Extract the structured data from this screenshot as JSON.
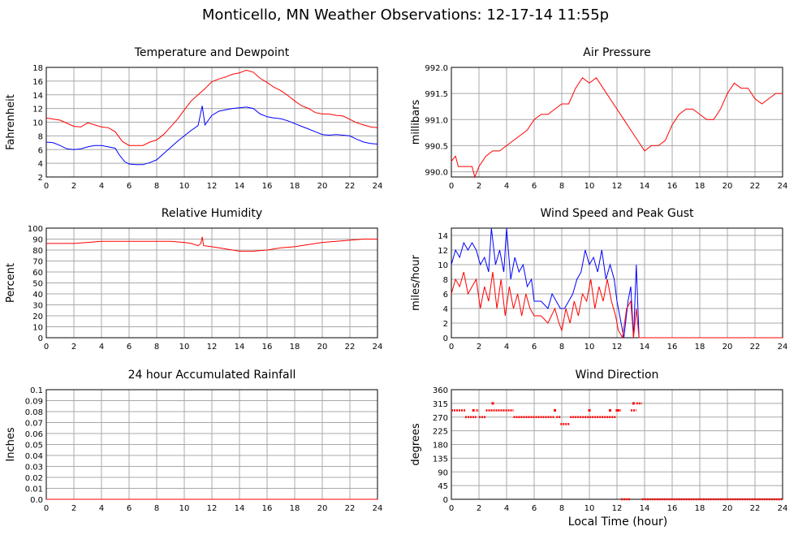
{
  "title": "Monticello, MN Weather Observations: 12-17-14 11:55p",
  "xlabel": "Local Time (hour)",
  "colors": {
    "red": "#ff0000",
    "blue": "#0000ff",
    "grid": "#a8a8a8"
  },
  "chart_data": [
    {
      "id": "temp",
      "type": "line",
      "title": "Temperature and Dewpoint",
      "ylabel": "Fahrenheit",
      "xlim": [
        0,
        24
      ],
      "ylim": [
        2,
        18
      ],
      "xticks": [
        "0",
        "2",
        "4",
        "6",
        "8",
        "10",
        "12",
        "14",
        "16",
        "18",
        "20",
        "22",
        "24"
      ],
      "yticks": [
        "2",
        "4",
        "6",
        "8",
        "10",
        "12",
        "14",
        "16",
        "18"
      ],
      "grid": true,
      "series": [
        {
          "color": "#ff0000",
          "x": [
            0,
            1,
            2,
            2.5,
            3,
            4,
            4.5,
            5,
            5.5,
            6,
            6.5,
            7,
            7.5,
            8,
            8.5,
            9,
            9.5,
            10,
            10.5,
            11,
            11.5,
            12,
            12.5,
            13,
            13.5,
            14,
            14.5,
            15,
            15.5,
            16,
            16.5,
            17,
            17.5,
            18,
            18.5,
            19,
            19.5,
            20,
            20.5,
            21,
            21.5,
            22,
            22.5,
            23,
            23.5,
            24
          ],
          "y": [
            10.6,
            10.3,
            9.4,
            9.3,
            9.9,
            9.3,
            9.2,
            8.6,
            7.2,
            6.6,
            6.6,
            6.6,
            7.1,
            7.4,
            8.2,
            9.3,
            10.4,
            11.8,
            13.1,
            14.0,
            14.9,
            15.9,
            16.3,
            16.6,
            17.0,
            17.2,
            17.6,
            17.3,
            16.4,
            15.8,
            15.1,
            14.6,
            13.9,
            13.1,
            12.4,
            12.0,
            11.4,
            11.2,
            11.2,
            11.0,
            10.9,
            10.4,
            9.9,
            9.6,
            9.3,
            9.2
          ]
        },
        {
          "color": "#0000ff",
          "x": [
            0,
            0.5,
            1,
            1.5,
            2,
            2.5,
            3,
            3.5,
            4,
            4.5,
            5,
            5.3,
            5.7,
            6,
            6.5,
            7,
            7.5,
            8,
            8.5,
            9,
            9.5,
            10,
            10.5,
            11,
            11.3,
            11.5,
            12,
            12.5,
            13,
            13.5,
            14,
            14.5,
            15,
            15.5,
            16,
            16.5,
            17,
            17.5,
            18,
            18.5,
            19,
            19.5,
            20,
            20.5,
            21,
            21.5,
            22,
            22.5,
            23,
            23.5,
            24
          ],
          "y": [
            7.1,
            7.0,
            6.6,
            6.1,
            6.0,
            6.1,
            6.4,
            6.6,
            6.6,
            6.4,
            6.2,
            5.2,
            4.2,
            3.9,
            3.8,
            3.8,
            4.1,
            4.5,
            5.4,
            6.3,
            7.2,
            8.0,
            8.8,
            9.5,
            12.4,
            9.6,
            11.0,
            11.6,
            11.8,
            12.0,
            12.1,
            12.2,
            12.0,
            11.2,
            10.8,
            10.6,
            10.5,
            10.2,
            9.8,
            9.4,
            9.0,
            8.6,
            8.2,
            8.1,
            8.2,
            8.1,
            8.0,
            7.5,
            7.1,
            6.9,
            6.8
          ]
        }
      ]
    },
    {
      "id": "pressure",
      "type": "line",
      "title": "Air Pressure",
      "ylabel": "millibars",
      "xlim": [
        0,
        24
      ],
      "ylim": [
        989.9,
        992.0
      ],
      "xticks": [
        "0",
        "2",
        "4",
        "6",
        "8",
        "10",
        "12",
        "14",
        "16",
        "18",
        "20",
        "22",
        "24"
      ],
      "yticks": [
        "990.0",
        "990.5",
        "991.0",
        "991.5",
        "992.0"
      ],
      "ytick_values": [
        990.0,
        990.5,
        991.0,
        991.5,
        992.0
      ],
      "grid": true,
      "series": [
        {
          "color": "#ff0000",
          "x": [
            0,
            0.3,
            0.5,
            1,
            1.5,
            1.7,
            2,
            2.5,
            3,
            3.5,
            4,
            4.5,
            5,
            5.5,
            6,
            6.5,
            7,
            7.5,
            8,
            8.5,
            9,
            9.5,
            10,
            10.5,
            11,
            11.5,
            12,
            12.5,
            13,
            13.5,
            14,
            14.5,
            15,
            15.5,
            16,
            16.5,
            17,
            17.5,
            18,
            18.5,
            19,
            19.5,
            20,
            20.5,
            21,
            21.5,
            22,
            22.5,
            23,
            23.5,
            24
          ],
          "y": [
            990.2,
            990.3,
            990.1,
            990.1,
            990.1,
            989.9,
            990.1,
            990.3,
            990.4,
            990.4,
            990.5,
            990.6,
            990.7,
            990.8,
            991.0,
            991.1,
            991.1,
            991.2,
            991.3,
            991.3,
            991.6,
            991.8,
            991.7,
            991.8,
            991.6,
            991.4,
            991.2,
            991.0,
            990.8,
            990.6,
            990.4,
            990.5,
            990.5,
            990.6,
            990.9,
            991.1,
            991.2,
            991.2,
            991.1,
            991.0,
            991.0,
            991.2,
            991.5,
            991.7,
            991.6,
            991.6,
            991.4,
            991.3,
            991.4,
            991.5,
            991.5
          ]
        }
      ]
    },
    {
      "id": "humidity",
      "type": "line",
      "title": "Relative Humidity",
      "ylabel": "Percent",
      "xlim": [
        0,
        24
      ],
      "ylim": [
        0,
        100
      ],
      "xticks": [
        "0",
        "2",
        "4",
        "6",
        "8",
        "10",
        "12",
        "14",
        "16",
        "18",
        "20",
        "22",
        "24"
      ],
      "yticks": [
        "0",
        "10",
        "20",
        "30",
        "40",
        "50",
        "60",
        "70",
        "80",
        "90",
        "100"
      ],
      "grid": true,
      "series": [
        {
          "color": "#ff0000",
          "x": [
            0,
            2,
            3,
            4,
            6,
            8,
            9,
            10,
            10.5,
            11,
            11.2,
            11.3,
            11.4,
            12,
            13,
            14,
            15,
            16,
            17,
            18,
            19,
            20,
            21,
            22,
            23,
            24
          ],
          "y": [
            86,
            86,
            87,
            88,
            88,
            88,
            88,
            87,
            86,
            84,
            86,
            92,
            84,
            83,
            81,
            79,
            79,
            80,
            82,
            83,
            85,
            87,
            88,
            89,
            90,
            90
          ]
        }
      ]
    },
    {
      "id": "wind",
      "type": "line",
      "title": "Wind Speed and Peak Gust",
      "ylabel": "miles/hour",
      "xlim": [
        0,
        24
      ],
      "ylim": [
        0,
        15
      ],
      "xticks": [
        "0",
        "2",
        "4",
        "6",
        "8",
        "10",
        "12",
        "14",
        "16",
        "18",
        "20",
        "22",
        "24"
      ],
      "yticks": [
        "0",
        "2",
        "4",
        "6",
        "8",
        "10",
        "12",
        "14"
      ],
      "grid": true,
      "series": [
        {
          "color": "#0000ff",
          "x": [
            0,
            0.3,
            0.6,
            0.9,
            1.2,
            1.5,
            1.8,
            2.1,
            2.4,
            2.7,
            2.9,
            3.2,
            3.5,
            3.8,
            4.0,
            4.3,
            4.6,
            4.9,
            5.2,
            5.5,
            5.8,
            6.0,
            6.5,
            7,
            7.3,
            7.6,
            7.9,
            8.2,
            8.5,
            8.8,
            9.1,
            9.4,
            9.7,
            10,
            10.3,
            10.6,
            10.9,
            11.2,
            11.5,
            11.8,
            12.0,
            12.2,
            12.5,
            12.8,
            13.0,
            13.2,
            13.4,
            13.6,
            14,
            16,
            18,
            20,
            22,
            24
          ],
          "y": [
            10,
            12,
            11,
            13,
            12,
            13,
            12,
            10,
            11,
            9,
            15,
            10,
            12,
            9,
            15,
            8,
            11,
            9,
            10,
            7,
            8,
            5,
            5,
            4,
            6,
            5,
            4,
            4,
            5,
            6,
            8,
            9,
            12,
            10,
            11,
            9,
            12,
            8,
            10,
            8,
            5,
            3,
            0,
            5,
            7,
            0,
            10,
            0,
            0,
            0,
            0,
            0,
            0,
            0
          ]
        },
        {
          "color": "#ff0000",
          "x": [
            0,
            0.3,
            0.6,
            0.9,
            1.2,
            1.5,
            1.8,
            2.1,
            2.4,
            2.7,
            3.0,
            3.3,
            3.6,
            3.9,
            4.2,
            4.5,
            4.8,
            5.1,
            5.4,
            5.7,
            6.0,
            6.5,
            7,
            7.5,
            7.8,
            8.0,
            8.3,
            8.6,
            8.9,
            9.2,
            9.5,
            9.8,
            10.1,
            10.4,
            10.7,
            11.0,
            11.3,
            11.6,
            11.9,
            12.1,
            12.4,
            12.7,
            13.0,
            13.2,
            13.4,
            13.6,
            14,
            16,
            18,
            20,
            22,
            24
          ],
          "y": [
            6,
            8,
            7,
            9,
            6,
            7,
            8,
            4,
            7,
            5,
            9,
            4,
            8,
            3,
            7,
            4,
            6,
            3,
            6,
            4,
            3,
            3,
            2,
            4,
            2,
            1,
            4,
            2,
            5,
            3,
            6,
            5,
            8,
            4,
            7,
            5,
            8,
            5,
            3,
            1,
            0,
            4,
            5,
            0,
            4,
            0,
            0,
            0,
            0,
            0,
            0,
            0
          ]
        }
      ]
    },
    {
      "id": "rain",
      "type": "line",
      "title": "24 hour Accumulated Rainfall",
      "ylabel": "Inches",
      "xlim": [
        0,
        24
      ],
      "ylim": [
        0,
        0.1
      ],
      "xticks": [
        "0",
        "2",
        "4",
        "6",
        "8",
        "10",
        "12",
        "14",
        "16",
        "18",
        "20",
        "22",
        "24"
      ],
      "yticks": [
        "0.0",
        "0.01",
        "0.02",
        "0.03",
        "0.04",
        "0.05",
        "0.06",
        "0.07",
        "0.08",
        "0.09",
        "0.1"
      ],
      "ytick_values": [
        0,
        0.01,
        0.02,
        0.03,
        0.04,
        0.05,
        0.06,
        0.07,
        0.08,
        0.09,
        0.1
      ],
      "grid": true,
      "series": [
        {
          "color": "#ff0000",
          "x": [
            0,
            24
          ],
          "y": [
            0,
            0
          ]
        }
      ]
    },
    {
      "id": "winddir",
      "type": "scatter",
      "title": "Wind Direction",
      "ylabel": "degrees",
      "xlim": [
        0,
        24
      ],
      "ylim": [
        0,
        360
      ],
      "xticks": [
        "0",
        "2",
        "4",
        "6",
        "8",
        "10",
        "12",
        "14",
        "16",
        "18",
        "20",
        "22",
        "24"
      ],
      "yticks": [
        "0",
        "45",
        "90",
        "135",
        "180",
        "225",
        "270",
        "315",
        "360"
      ],
      "grid": true,
      "segments": [
        {
          "x0": 0.0,
          "x1": 1.0,
          "y": 292
        },
        {
          "x0": 1.0,
          "x1": 1.8,
          "y": 270
        },
        {
          "x0": 1.8,
          "x1": 2.0,
          "y": 292
        },
        {
          "x0": 2.0,
          "x1": 2.5,
          "y": 270
        },
        {
          "x0": 2.5,
          "x1": 4.5,
          "y": 292
        },
        {
          "x0": 4.5,
          "x1": 7.5,
          "y": 270
        },
        {
          "x0": 7.6,
          "x1": 7.9,
          "y": 270
        },
        {
          "x0": 7.9,
          "x1": 8.6,
          "y": 247
        },
        {
          "x0": 8.6,
          "x1": 11.9,
          "y": 270
        },
        {
          "x0": 11.9,
          "x1": 12.3,
          "y": 292
        },
        {
          "x0": 12.3,
          "x1": 13.0,
          "y": 0
        },
        {
          "x0": 13.0,
          "x1": 13.4,
          "y": 292
        },
        {
          "x0": 13.4,
          "x1": 13.8,
          "y": 315
        },
        {
          "x0": 13.8,
          "x1": 24.0,
          "y": 0
        }
      ],
      "points": [
        {
          "x": 1.6,
          "y": 292
        },
        {
          "x": 3.0,
          "y": 315
        },
        {
          "x": 7.5,
          "y": 292
        },
        {
          "x": 10.0,
          "y": 292
        },
        {
          "x": 11.5,
          "y": 292
        },
        {
          "x": 13.2,
          "y": 315
        },
        {
          "x": 12.1,
          "y": 292
        }
      ]
    }
  ]
}
